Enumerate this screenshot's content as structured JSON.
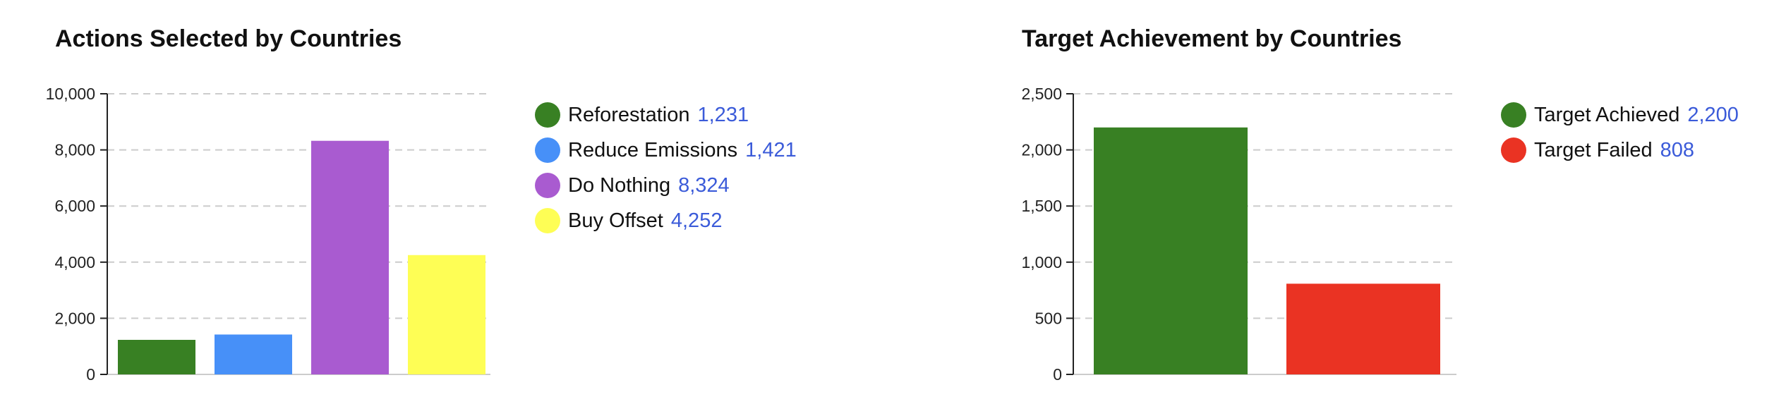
{
  "chart_data": [
    {
      "type": "bar",
      "title": "Actions Selected by Countries",
      "categories": [
        "Reforestation",
        "Reduce Emissions",
        "Do Nothing",
        "Buy Offset"
      ],
      "values": [
        1231,
        1421,
        8324,
        4252
      ],
      "value_labels": [
        "1,231",
        "1,421",
        "8,324",
        "4,252"
      ],
      "colors": [
        "#388023",
        "#4790f8",
        "#a95bd0",
        "#fefe55"
      ],
      "ylim": [
        0,
        10000
      ],
      "yticks": [
        0,
        2000,
        4000,
        6000,
        8000,
        10000
      ],
      "ytick_labels": [
        "0",
        "2,000",
        "4,000",
        "6,000",
        "8,000",
        "10,000"
      ],
      "grid": true,
      "legend_position": "right"
    },
    {
      "type": "bar",
      "title": "Target Achievement by Countries",
      "categories": [
        "Target Achieved",
        "Target Failed"
      ],
      "values": [
        2200,
        808
      ],
      "value_labels": [
        "2,200",
        "808"
      ],
      "colors": [
        "#388023",
        "#ea3323"
      ],
      "ylim": [
        0,
        2500
      ],
      "yticks": [
        0,
        500,
        1000,
        1500,
        2000,
        2500
      ],
      "ytick_labels": [
        "0",
        "500",
        "1,000",
        "1,500",
        "2,000",
        "2,500"
      ],
      "grid": true,
      "legend_position": "right"
    }
  ]
}
